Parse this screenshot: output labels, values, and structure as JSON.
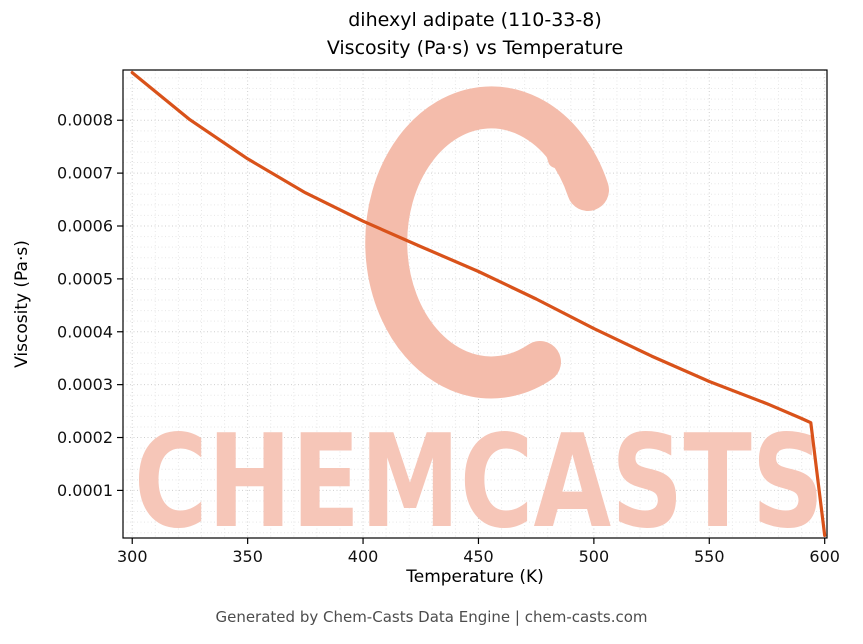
{
  "chart": {
    "title_line1": "dihexyl adipate (110-33-8)",
    "title_line2": "Viscosity (Pa·s) vs Temperature",
    "xlabel": "Temperature (K)",
    "ylabel": "Viscosity (Pa·s)"
  },
  "watermark": {
    "text": "CHEMCASTS",
    "color": "#f6c6b8",
    "logo_color": "#f4bcab"
  },
  "footer": {
    "text": "Generated by Chem-Casts Data Engine | chem-casts.com"
  },
  "chart_data": {
    "type": "line",
    "title": "dihexyl adipate (110-33-8) — Viscosity (Pa·s) vs Temperature",
    "xlabel": "Temperature (K)",
    "ylabel": "Viscosity (Pa·s)",
    "xlim": [
      296,
      601
    ],
    "ylim": [
      1e-05,
      0.000895
    ],
    "xticks": [
      300,
      350,
      400,
      450,
      500,
      550,
      600
    ],
    "yticks": [
      0.0001,
      0.0002,
      0.0003,
      0.0004,
      0.0005,
      0.0006,
      0.0007,
      0.0008
    ],
    "minor_x_step": 10,
    "minor_y_step": 2e-05,
    "grid": true,
    "legend": false,
    "line_color": "#d9521a",
    "series": [
      {
        "name": "viscosity",
        "x": [
          300,
          325,
          350,
          375,
          400,
          425,
          450,
          475,
          500,
          525,
          550,
          575,
          590,
          594,
          600
        ],
        "y": [
          0.00089,
          0.000801,
          0.000727,
          0.000663,
          0.000609,
          0.000561,
          0.000514,
          0.000462,
          0.000406,
          0.000354,
          0.000306,
          0.000264,
          0.000236,
          0.000228,
          1.5e-05
        ]
      }
    ]
  }
}
